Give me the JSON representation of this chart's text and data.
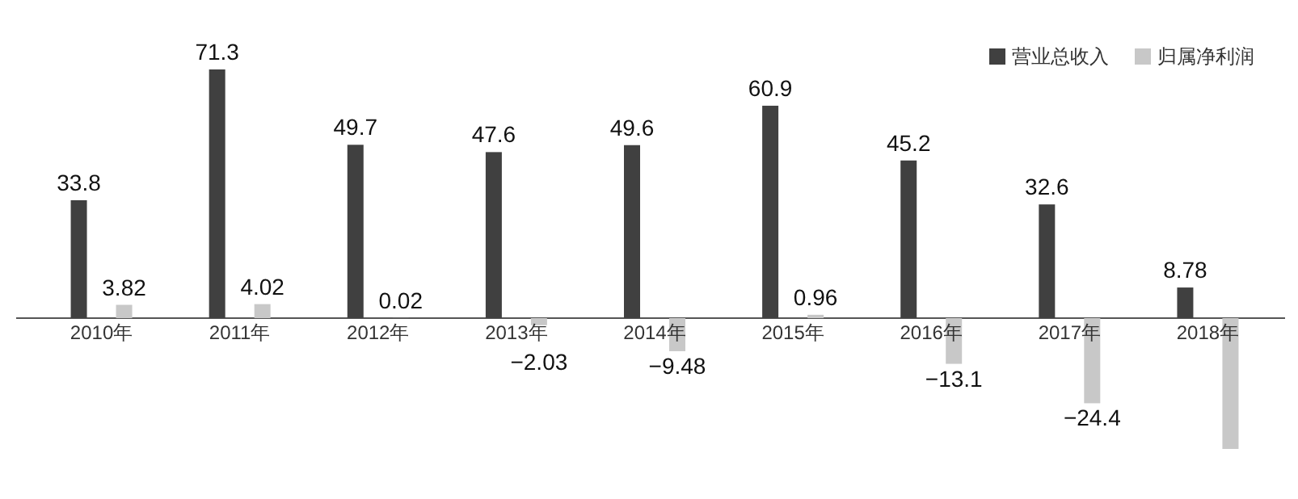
{
  "chart_data": {
    "type": "bar",
    "categories": [
      "2010年",
      "2011年",
      "2012年",
      "2013年",
      "2014年",
      "2015年",
      "2016年",
      "2017年",
      "2018年"
    ],
    "series": [
      {
        "name": "营业总收入",
        "color": "#404040",
        "values": [
          33.8,
          71.3,
          49.7,
          47.6,
          49.6,
          60.9,
          45.2,
          32.6,
          8.78
        ],
        "value_labels": [
          "33.8",
          "71.3",
          "49.7",
          "47.6",
          "49.6",
          "60.9",
          "45.2",
          "32.6",
          "8.78"
        ]
      },
      {
        "name": "归属净利润",
        "color": "#c8c8c8",
        "values": [
          3.82,
          4.02,
          0.02,
          -2.03,
          -9.48,
          0.96,
          -13.1,
          -24.4,
          -37.5
        ],
        "value_labels": [
          "3.82",
          "4.02",
          "0.02",
          "−2.03",
          "−9.48",
          "0.96",
          "−13.1",
          "−24.4",
          null
        ]
      }
    ],
    "legend": "top right",
    "tick_labels": "x"
  }
}
